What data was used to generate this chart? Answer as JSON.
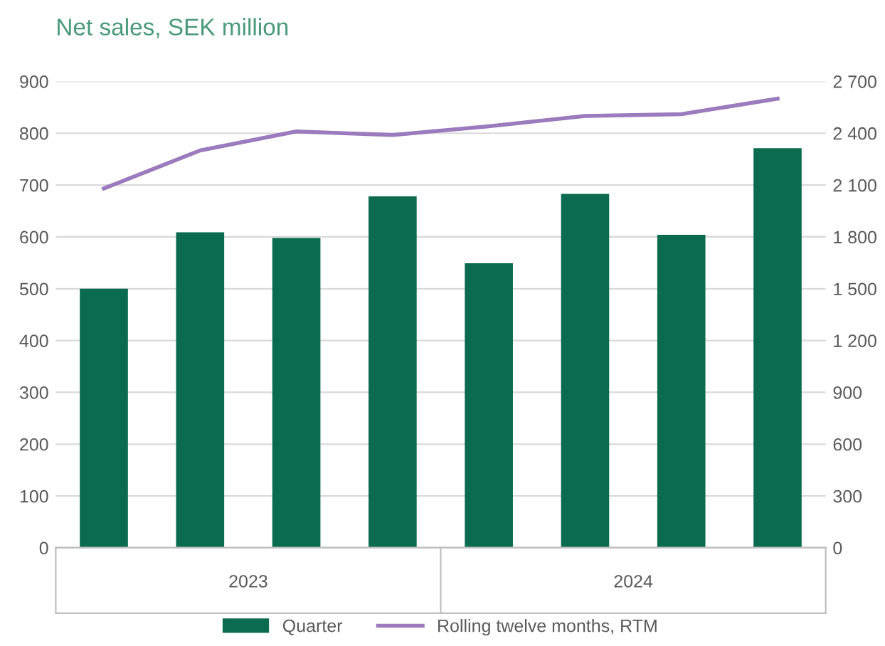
{
  "chart_data": {
    "type": "bar",
    "title": "Net sales, SEK million",
    "categories": [
      null,
      null,
      null,
      null,
      null,
      null,
      null,
      null
    ],
    "series": [
      {
        "name": "Quarter",
        "color": "#0b6b4f",
        "values": [
          500,
          609,
          598,
          678,
          549,
          683,
          604,
          771
        ]
      },
      {
        "name": "Rolling twelve months, RTM",
        "type": "line",
        "axis": "y2",
        "color": "#9b7bbd",
        "values": [
          2080,
          2300,
          2410,
          2390,
          2440,
          2500,
          2510,
          2600
        ]
      }
    ],
    "annotations": [
      "2023",
      "2024"
    ],
    "ylim": [
      0,
      900
    ],
    "yticks": [
      0,
      100,
      200,
      300,
      400,
      500,
      600,
      700,
      800,
      900
    ],
    "y2lim": [
      0,
      2700
    ],
    "y2ticks": [
      0,
      300,
      600,
      900,
      {
        "value": 1200,
        "label": "1 200"
      },
      {
        "value": 1500,
        "label": "1 500"
      },
      {
        "value": 1800,
        "label": "1 800"
      },
      {
        "value": 2100,
        "label": "2 100"
      },
      {
        "value": 2400,
        "label": "2 400"
      },
      {
        "value": 2700,
        "label": "2 700"
      }
    ],
    "grid": "y",
    "legend": "bottom",
    "marker": "none",
    "line_style": "solid"
  }
}
